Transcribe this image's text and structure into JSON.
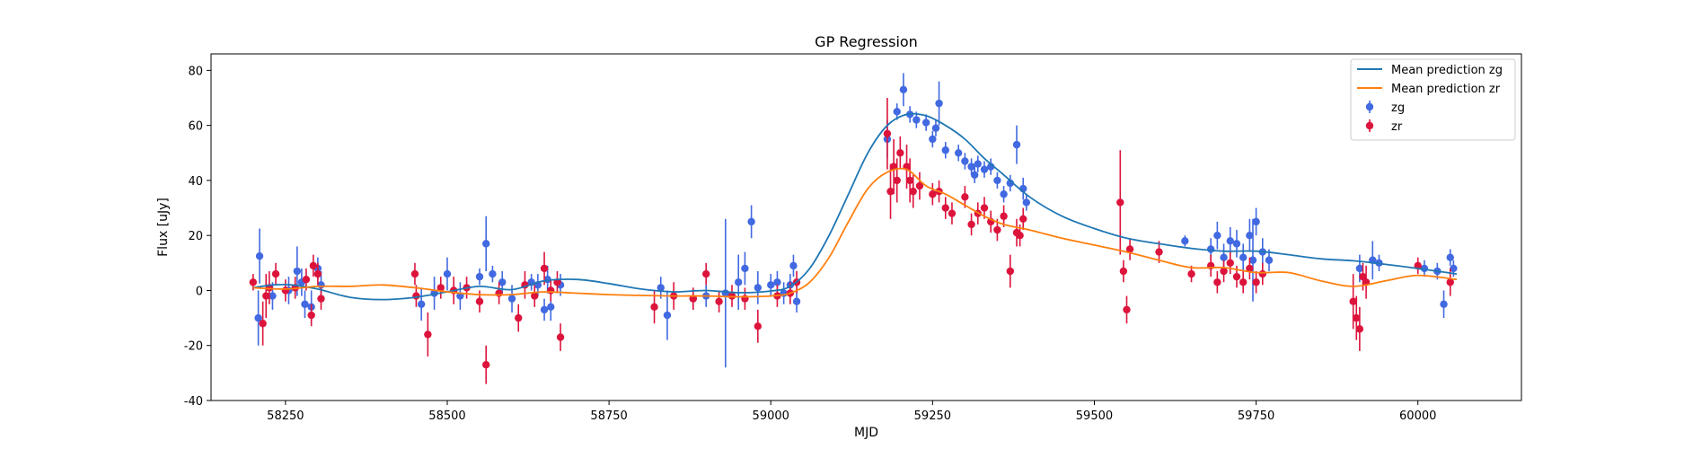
{
  "chart_data": {
    "type": "scatter",
    "title": "GP Regression",
    "xlabel": "MJD",
    "ylabel": "Flux [uJy]",
    "xlim": [
      58135,
      60160
    ],
    "ylim": [
      -40,
      86
    ],
    "xticks": [
      58250,
      58500,
      58750,
      59000,
      59250,
      59500,
      59750,
      60000
    ],
    "yticks": [
      -40,
      -20,
      0,
      20,
      40,
      60,
      80
    ],
    "grid": false,
    "legend_position": "top-right",
    "colors": {
      "zg_line": "#1f77b4",
      "zr_line": "#ff7f0e",
      "zg_points": "#4169e1",
      "zr_points": "#dc143c"
    },
    "legend": [
      {
        "label": "Mean prediction zg",
        "kind": "line",
        "color": "#1f77b4"
      },
      {
        "label": "Mean prediction zr",
        "kind": "line",
        "color": "#ff7f0e"
      },
      {
        "label": "zg",
        "kind": "errorbar",
        "color": "#4169e1"
      },
      {
        "label": "zr",
        "kind": "errorbar",
        "color": "#dc143c"
      }
    ],
    "series": [
      {
        "name": "Mean prediction zg",
        "type": "line",
        "color": "#1f77b4",
        "x": [
          58200,
          58230,
          58260,
          58300,
          58350,
          58400,
          58450,
          58500,
          58550,
          58600,
          58650,
          58700,
          58750,
          58800,
          58850,
          58900,
          58950,
          59000,
          59030,
          59060,
          59090,
          59120,
          59150,
          59180,
          59210,
          59240,
          59270,
          59300,
          59330,
          59360,
          59400,
          59450,
          59500,
          59550,
          59600,
          59650,
          59700,
          59750,
          59800,
          59850,
          59900,
          59950,
          60000,
          60060
        ],
        "y": [
          1,
          2,
          2,
          0.5,
          -2.5,
          -3.3,
          -2.5,
          -0.5,
          1.5,
          0.3,
          3.5,
          4,
          2.5,
          0.5,
          -0.5,
          0,
          -0.8,
          -0.2,
          1.5,
          8,
          20,
          35,
          50,
          60,
          64,
          63.5,
          60,
          55,
          48,
          42,
          34,
          27,
          22.5,
          19,
          17,
          15.3,
          14.3,
          14.3,
          13,
          11.5,
          10.8,
          9.5,
          8,
          6
        ]
      },
      {
        "name": "Mean prediction zr",
        "type": "line",
        "color": "#ff7f0e",
        "x": [
          58200,
          58250,
          58300,
          58350,
          58400,
          58450,
          58500,
          58550,
          58600,
          58650,
          58700,
          58750,
          58800,
          58850,
          58900,
          58950,
          59000,
          59030,
          59060,
          59090,
          59120,
          59150,
          59180,
          59210,
          59240,
          59270,
          59300,
          59330,
          59360,
          59400,
          59450,
          59500,
          59550,
          59600,
          59650,
          59700,
          59750,
          59800,
          59850,
          59900,
          59950,
          60000,
          60060
        ],
        "y": [
          1,
          0.5,
          1.5,
          1.5,
          2,
          1,
          -0.5,
          -1.5,
          -1.5,
          -0.5,
          -1,
          -1.5,
          -1.8,
          -2,
          -2,
          -2.3,
          -2,
          -1,
          3,
          12,
          25,
          37,
          43,
          44,
          38,
          35,
          31,
          27,
          24,
          22,
          19,
          16.5,
          14,
          11,
          8.3,
          8.3,
          6.5,
          6.5,
          3.5,
          1.5,
          3.5,
          5.5,
          4
        ]
      },
      {
        "name": "zg",
        "type": "errorbar",
        "color": "#4169e1",
        "x": [
          58208,
          58210,
          58230,
          58255,
          58268,
          58275,
          58280,
          58290,
          58300,
          58305,
          58460,
          58480,
          58500,
          58520,
          58550,
          58560,
          58570,
          58585,
          58600,
          58630,
          58640,
          58650,
          58655,
          58660,
          58675,
          58830,
          58840,
          58880,
          58900,
          58930,
          58950,
          58960,
          58970,
          58980,
          59000,
          59010,
          59020,
          59030,
          59035,
          59040,
          59180,
          59195,
          59205,
          59215,
          59225,
          59240,
          59250,
          59255,
          59260,
          59270,
          59290,
          59300,
          59310,
          59315,
          59320,
          59330,
          59340,
          59350,
          59360,
          59370,
          59380,
          59390,
          59395,
          59640,
          59680,
          59690,
          59700,
          59710,
          59720,
          59730,
          59740,
          59745,
          59750,
          59760,
          59770,
          59910,
          59930,
          59940,
          60010,
          60030,
          60040,
          60050,
          60055
        ],
        "y": [
          -10,
          12.5,
          -2,
          0,
          7,
          3,
          -5,
          -6,
          8,
          2,
          -5,
          -1,
          6,
          -2,
          5,
          17,
          6,
          3,
          -3,
          3,
          2,
          -7,
          4,
          -6,
          2,
          1,
          -9,
          -3,
          -2,
          -1,
          3,
          8,
          25,
          1,
          2,
          3,
          -1,
          2,
          9,
          -4,
          55,
          65,
          73,
          64,
          62,
          61,
          55,
          59,
          68,
          51,
          50,
          47,
          45,
          42,
          46,
          44,
          45,
          40,
          35,
          39,
          53,
          37,
          32,
          18,
          15,
          20,
          12,
          18,
          17,
          12,
          20,
          11,
          25,
          14,
          11,
          8,
          11,
          10,
          8,
          7,
          -5,
          12,
          8
        ],
        "err": [
          10,
          10,
          5,
          5,
          9,
          5,
          5,
          6,
          4,
          5,
          6,
          6,
          6,
          5,
          3,
          10,
          3,
          4,
          5,
          3,
          4,
          4,
          5,
          5,
          4,
          4,
          9,
          4,
          4,
          27,
          10,
          6,
          6,
          6,
          4,
          4,
          4,
          4,
          4,
          4,
          7,
          3,
          6,
          3,
          3,
          3,
          3,
          3,
          8,
          3,
          3,
          3,
          3,
          3,
          3,
          3,
          3,
          3,
          3,
          3,
          7,
          4,
          3,
          2,
          4,
          5,
          5,
          5,
          5,
          5,
          6,
          15,
          5,
          5,
          4,
          5,
          7,
          3,
          3,
          3,
          5,
          3,
          3
        ]
      },
      {
        "name": "zr",
        "type": "errorbar",
        "color": "#dc143c",
        "x": [
          58200,
          58215,
          58220,
          58225,
          58235,
          58250,
          58265,
          58282,
          58290,
          58293,
          58300,
          58305,
          58450,
          58452,
          58470,
          58490,
          58510,
          58530,
          58550,
          58560,
          58580,
          58610,
          58620,
          58635,
          58650,
          58660,
          58670,
          58675,
          58820,
          58850,
          58880,
          58900,
          58920,
          58940,
          58960,
          58980,
          59010,
          59030,
          59040,
          59180,
          59185,
          59190,
          59195,
          59200,
          59210,
          59215,
          59220,
          59230,
          59250,
          59260,
          59270,
          59280,
          59300,
          59310,
          59320,
          59330,
          59340,
          59350,
          59360,
          59370,
          59380,
          59385,
          59390,
          59540,
          59545,
          59550,
          59555,
          59600,
          59650,
          59680,
          59690,
          59700,
          59710,
          59720,
          59730,
          59740,
          59750,
          59760,
          59900,
          59905,
          59910,
          59915,
          59920,
          60000,
          60050
        ],
        "y": [
          3,
          -12,
          -2,
          1,
          6,
          0,
          1,
          4,
          -9,
          9,
          6,
          -3,
          6,
          -2,
          -16,
          1,
          0,
          1,
          -4,
          -27,
          -1,
          -10,
          2,
          -2,
          8,
          0,
          3,
          -17,
          -6,
          -2,
          -3,
          6,
          -4,
          -2,
          -3,
          -13,
          -2,
          -1,
          3,
          57,
          36,
          45,
          40,
          50,
          45,
          40,
          36,
          38,
          35,
          36,
          30,
          28,
          34,
          24,
          28,
          30,
          25,
          22,
          27,
          7,
          21,
          20,
          26,
          32,
          7,
          -7,
          15,
          14,
          6,
          9,
          3,
          7,
          10,
          5,
          3,
          8,
          3,
          6,
          -4,
          -10,
          -14,
          5,
          3,
          9,
          3
        ],
        "err": [
          3,
          8,
          8,
          6,
          4,
          4,
          4,
          4,
          4,
          4,
          4,
          4,
          4,
          4,
          8,
          4,
          5,
          4,
          4,
          7,
          4,
          5,
          5,
          4,
          6,
          4,
          4,
          5,
          6,
          5,
          4,
          4,
          4,
          4,
          4,
          6,
          4,
          4,
          4,
          13,
          10,
          10,
          8,
          6,
          8,
          8,
          6,
          5,
          4,
          4,
          4,
          4,
          4,
          4,
          4,
          4,
          4,
          4,
          4,
          6,
          5,
          4,
          4,
          19,
          4,
          5,
          4,
          4,
          3,
          4,
          4,
          4,
          4,
          4,
          4,
          4,
          4,
          4,
          10,
          8,
          8,
          5,
          6,
          3,
          5
        ]
      }
    ]
  }
}
